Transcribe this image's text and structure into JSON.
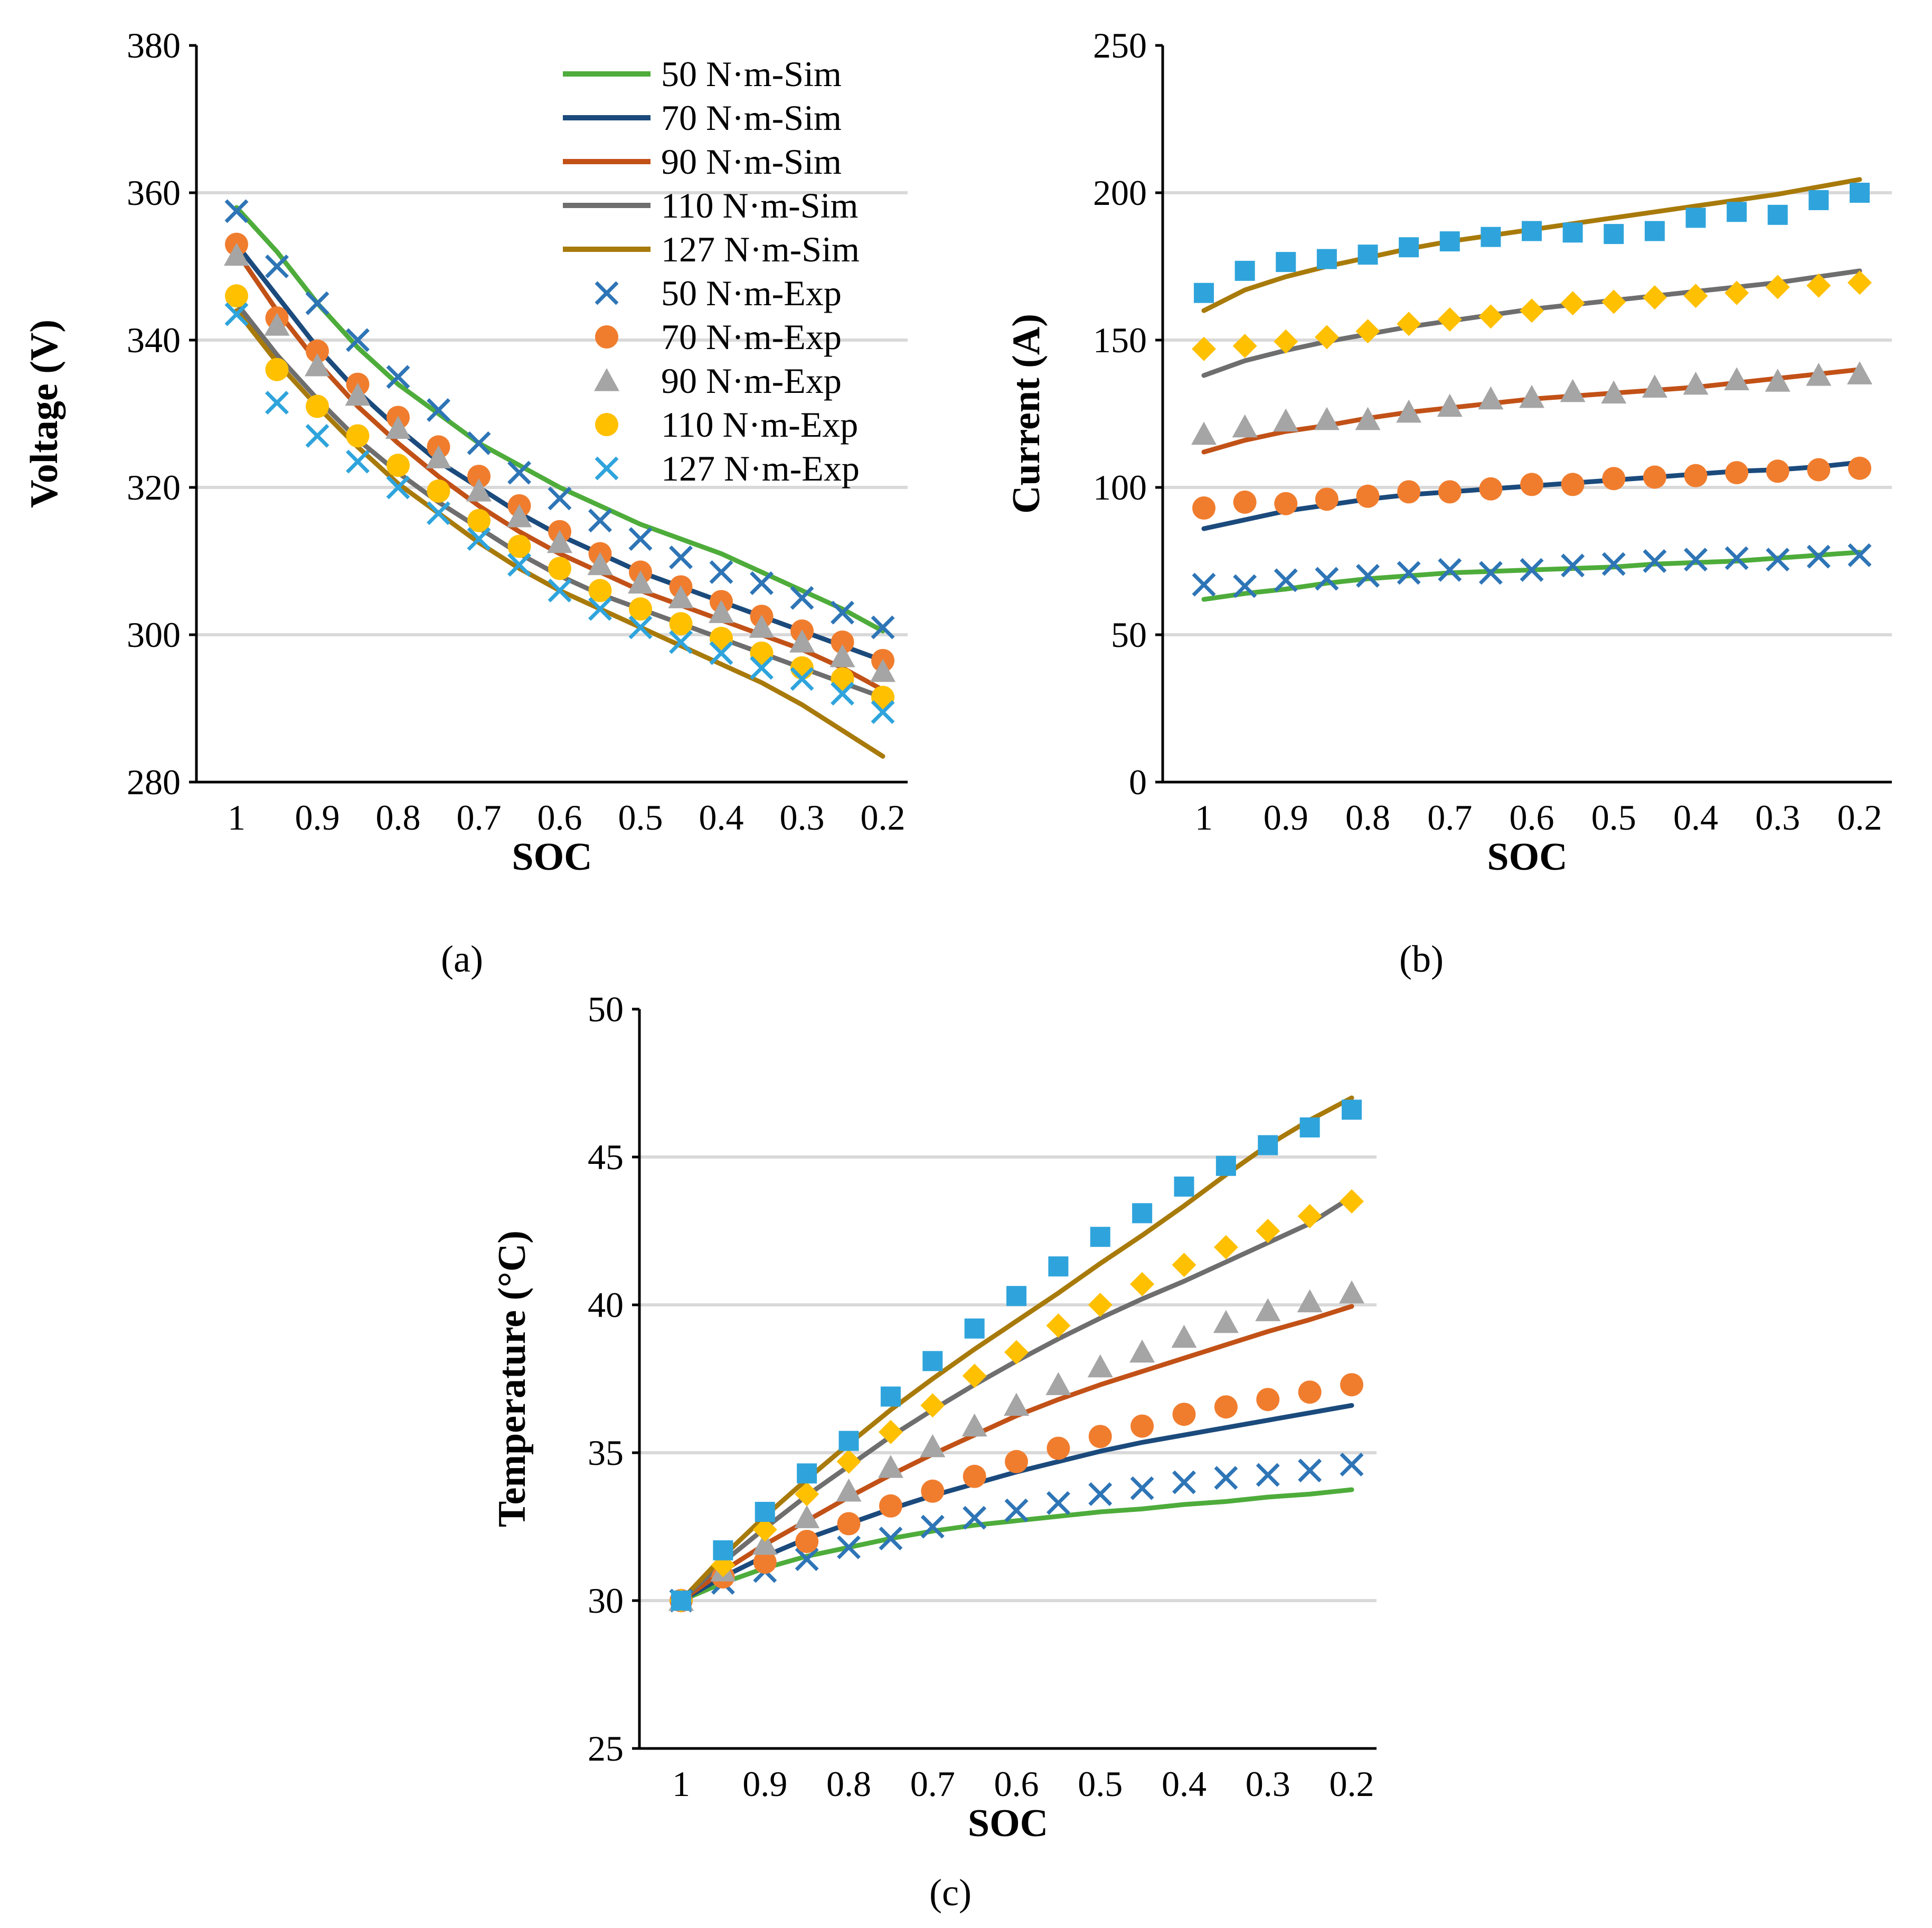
{
  "figure": {
    "panel_labels": [
      "(a)",
      "(b)",
      "(c)"
    ]
  },
  "colors": {
    "sim": {
      "50": "#4EAC3B",
      "70": "#1B4A7C",
      "90": "#C25117",
      "110": "#6E6E6E",
      "127": "#A87A0A"
    },
    "exp": {
      "50": "#2E75B6",
      "70": "#F07D2E",
      "90": "#A5A5A5",
      "110": "#FFC000",
      "127": "#2FA4DC"
    }
  },
  "legend": {
    "entries": [
      {
        "label": "50 N·m-Sim",
        "kind": "line",
        "key": "50"
      },
      {
        "label": "70 N·m-Sim",
        "kind": "line",
        "key": "70"
      },
      {
        "label": "90 N·m-Sim",
        "kind": "line",
        "key": "90"
      },
      {
        "label": "110 N·m-Sim",
        "kind": "line",
        "key": "110"
      },
      {
        "label": "127 N·m-Sim",
        "kind": "line",
        "key": "127"
      },
      {
        "label": "50 N·m-Exp",
        "kind": "x",
        "key": "50"
      },
      {
        "label": "70 N·m-Exp",
        "kind": "circle",
        "key": "70"
      },
      {
        "label": "90 N·m-Exp",
        "kind": "triangle",
        "key": "90"
      },
      {
        "label": "110 N·m-Exp",
        "kind": "circle",
        "key": "110"
      },
      {
        "label": "127 N·m-Exp",
        "kind": "x",
        "key": "127"
      }
    ]
  },
  "chart_data": [
    {
      "id": "a",
      "type": "line",
      "title": "",
      "xlabel": "SOC",
      "ylabel": "Voltage (V)",
      "xlim": [
        1,
        0.2
      ],
      "ylim": [
        280,
        380
      ],
      "yticks": [
        280,
        300,
        320,
        340,
        360,
        380
      ],
      "xticks": [
        1,
        0.9,
        0.8,
        0.7,
        0.6,
        0.5,
        0.4,
        0.3,
        0.2
      ],
      "xtick_labels": [
        "1",
        "0.9",
        "0.8",
        "0.7",
        "0.6",
        "0.5",
        "0.4",
        "0.3",
        "0.2"
      ],
      "gridlines": [
        300,
        320,
        340,
        360
      ],
      "legend": "top-right",
      "sim_x": [
        1,
        0.95,
        0.9,
        0.85,
        0.8,
        0.75,
        0.7,
        0.65,
        0.6,
        0.55,
        0.5,
        0.45,
        0.4,
        0.35,
        0.3,
        0.25,
        0.2
      ],
      "exp_x": [
        1,
        0.95,
        0.9,
        0.85,
        0.8,
        0.75,
        0.7,
        0.65,
        0.6,
        0.55,
        0.5,
        0.45,
        0.4,
        0.35,
        0.3,
        0.25,
        0.2
      ],
      "series": [
        {
          "name": "50 N·m-Sim",
          "key": "50",
          "kind": "line",
          "values": [
            358,
            352,
            345,
            339,
            334,
            330,
            326,
            323,
            320,
            317.5,
            315,
            313,
            311,
            308.5,
            306,
            303.5,
            300.5
          ]
        },
        {
          "name": "70 N·m-Sim",
          "key": "70",
          "kind": "line",
          "values": [
            353,
            346,
            339,
            333,
            328,
            323.5,
            320,
            316.5,
            313.5,
            311,
            308.5,
            306.5,
            304.5,
            302.5,
            300.5,
            298.5,
            296.5
          ]
        },
        {
          "name": "90 N·m-Sim",
          "key": "90",
          "kind": "line",
          "values": [
            352,
            344,
            337,
            331,
            326,
            321.5,
            317.5,
            314,
            311,
            308.5,
            306,
            304,
            302,
            300,
            298,
            295.5,
            292.5
          ]
        },
        {
          "name": "110 N·m-Sim",
          "key": "110",
          "kind": "line",
          "values": [
            345,
            338,
            332,
            326.5,
            322,
            318,
            314.5,
            311,
            308,
            305.5,
            303.5,
            301.5,
            299.5,
            297.5,
            295.5,
            293.5,
            291.5
          ]
        },
        {
          "name": "127 N·m-Sim",
          "key": "127",
          "kind": "line",
          "values": [
            344,
            337,
            331,
            325.5,
            320.5,
            316.5,
            312.5,
            309,
            306,
            303.5,
            301,
            298.5,
            296,
            293.5,
            290.5,
            287,
            283.5
          ]
        },
        {
          "name": "50 N·m-Exp",
          "key": "50",
          "kind": "x",
          "values": [
            357.5,
            350,
            345,
            340,
            335,
            330.5,
            326,
            322,
            318.5,
            315.5,
            313,
            310.5,
            308.5,
            307,
            305,
            303,
            301
          ]
        },
        {
          "name": "70 N·m-Exp",
          "key": "70",
          "kind": "circle",
          "values": [
            353,
            343,
            338.5,
            334,
            329.5,
            325.5,
            321.5,
            317.5,
            314,
            311,
            308.5,
            306.5,
            304.5,
            302.5,
            300.5,
            299,
            296.5
          ]
        },
        {
          "name": "90 N·m-Exp",
          "key": "90",
          "kind": "triangle",
          "values": [
            351.5,
            342,
            336.5,
            332.5,
            328,
            324,
            319.5,
            316,
            312.5,
            309.5,
            307,
            305,
            303,
            301,
            299,
            297,
            295
          ]
        },
        {
          "name": "110 N·m-Exp",
          "key": "110",
          "kind": "circle",
          "values": [
            346,
            336,
            331,
            327,
            323,
            319.5,
            315.5,
            312,
            309,
            306,
            303.5,
            301.5,
            299.5,
            297.5,
            295.5,
            294,
            291.5
          ]
        },
        {
          "name": "127 N·m-Exp",
          "key": "127",
          "kind": "x",
          "values": [
            343.5,
            331.5,
            327,
            323.5,
            320,
            316.5,
            313,
            309.5,
            306,
            303.5,
            301,
            299,
            297.5,
            295.5,
            294,
            292,
            289.5
          ]
        }
      ]
    },
    {
      "id": "b",
      "type": "line",
      "title": "",
      "xlabel": "SOC",
      "ylabel": "Current (A)",
      "xlim": [
        1,
        0.2
      ],
      "ylim": [
        0,
        250
      ],
      "yticks": [
        0,
        50,
        100,
        150,
        200,
        250
      ],
      "xticks": [
        1,
        0.9,
        0.8,
        0.7,
        0.6,
        0.5,
        0.4,
        0.3,
        0.2
      ],
      "xtick_labels": [
        "1",
        "0.9",
        "0.8",
        "0.7",
        "0.6",
        "0.5",
        "0.4",
        "0.3",
        "0.2"
      ],
      "gridlines": [
        50,
        100,
        150,
        200
      ],
      "legend": "none",
      "sim_x": [
        1,
        0.95,
        0.9,
        0.85,
        0.8,
        0.75,
        0.7,
        0.65,
        0.6,
        0.55,
        0.5,
        0.45,
        0.4,
        0.35,
        0.3,
        0.25,
        0.2
      ],
      "exp_x": [
        1,
        0.95,
        0.9,
        0.85,
        0.8,
        0.75,
        0.7,
        0.65,
        0.6,
        0.55,
        0.5,
        0.45,
        0.4,
        0.35,
        0.3,
        0.25,
        0.2
      ],
      "series": [
        {
          "name": "50 N·m-Sim",
          "key": "50",
          "kind": "line",
          "values": [
            62,
            64,
            65.5,
            67.5,
            69,
            70,
            71,
            71.5,
            72,
            72.5,
            73,
            74,
            74.5,
            75,
            76,
            77,
            78
          ]
        },
        {
          "name": "70 N·m-Sim",
          "key": "70",
          "kind": "line",
          "values": [
            86,
            89,
            92,
            94,
            96,
            97.5,
            98.5,
            99.5,
            100.5,
            101.5,
            102.5,
            103.5,
            104.5,
            105.5,
            106,
            107,
            108.5
          ]
        },
        {
          "name": "90 N·m-Sim",
          "key": "90",
          "kind": "line",
          "values": [
            112,
            116,
            119,
            121,
            123.5,
            125.5,
            127,
            128.5,
            130,
            131,
            132,
            133,
            134,
            135.5,
            137,
            138.5,
            140
          ]
        },
        {
          "name": "110 N·m-Sim",
          "key": "110",
          "kind": "line",
          "values": [
            138,
            143,
            146.5,
            149.5,
            152,
            154.5,
            156.5,
            158.5,
            160.5,
            162,
            163.5,
            165,
            166.5,
            168,
            169.5,
            171.5,
            173.5
          ]
        },
        {
          "name": "127 N·m-Sim",
          "key": "127",
          "kind": "line",
          "values": [
            160,
            167,
            171.5,
            175,
            178,
            181,
            183.5,
            185.5,
            187.5,
            189.5,
            191.5,
            193.5,
            195.5,
            197.5,
            199.5,
            202,
            204.5
          ]
        },
        {
          "name": "50 N·m-Exp",
          "key": "50",
          "kind": "x",
          "values": [
            67,
            66.5,
            68.5,
            69,
            70,
            71,
            72,
            71,
            72,
            73.5,
            74,
            75,
            75.5,
            76,
            75.5,
            76.5,
            77
          ]
        },
        {
          "name": "70 N·m-Exp",
          "key": "70",
          "kind": "circle",
          "values": [
            93,
            95,
            94.5,
            96,
            97,
            98.5,
            98.5,
            99.5,
            101,
            101,
            103,
            103.5,
            104,
            105,
            105.5,
            106,
            106.5
          ]
        },
        {
          "name": "90 N·m-Exp",
          "key": "90",
          "kind": "triangle",
          "values": [
            118,
            120.5,
            122.5,
            123,
            123,
            125.5,
            127.5,
            130,
            130.5,
            132.5,
            132,
            134,
            135,
            136.5,
            136,
            138,
            138.5
          ]
        },
        {
          "name": "110 N·m-Exp",
          "key": "110",
          "kind": "diamond",
          "values": [
            147,
            148,
            149.5,
            151,
            153,
            155.5,
            157,
            158,
            160,
            162.5,
            163,
            164.5,
            165,
            166,
            168,
            168.5,
            169.5
          ]
        },
        {
          "name": "127 N·m-Exp",
          "key": "127",
          "kind": "square",
          "values": [
            166,
            173.5,
            176.5,
            177.5,
            179,
            181.5,
            183.5,
            185,
            187,
            186.5,
            186,
            187,
            191.5,
            193.5,
            192.5,
            197.5,
            200
          ]
        }
      ]
    },
    {
      "id": "c",
      "type": "line",
      "title": "",
      "xlabel": "SOC",
      "ylabel": "Temperature (°C)",
      "xlim": [
        1,
        0.2
      ],
      "ylim": [
        25,
        50
      ],
      "yticks": [
        25,
        30,
        35,
        40,
        45,
        50
      ],
      "xticks": [
        1,
        0.9,
        0.8,
        0.7,
        0.6,
        0.5,
        0.4,
        0.3,
        0.2
      ],
      "xtick_labels": [
        "1",
        "0.9",
        "0.8",
        "0.7",
        "0.6",
        "0.5",
        "0.4",
        "0.3",
        "0.2"
      ],
      "gridlines": [
        30,
        35,
        40,
        45
      ],
      "legend": "none",
      "sim_x": [
        1,
        0.95,
        0.9,
        0.85,
        0.8,
        0.75,
        0.7,
        0.65,
        0.6,
        0.55,
        0.5,
        0.45,
        0.4,
        0.35,
        0.3,
        0.25,
        0.2
      ],
      "exp_x": [
        1,
        0.95,
        0.9,
        0.85,
        0.8,
        0.75,
        0.7,
        0.65,
        0.6,
        0.55,
        0.5,
        0.45,
        0.4,
        0.35,
        0.3,
        0.25,
        0.2
      ],
      "series": [
        {
          "name": "50 N·m-Sim",
          "key": "50",
          "kind": "line",
          "values": [
            30,
            30.6,
            31.1,
            31.5,
            31.8,
            32.1,
            32.35,
            32.55,
            32.7,
            32.85,
            33,
            33.1,
            33.25,
            33.35,
            33.5,
            33.6,
            33.75
          ]
        },
        {
          "name": "70 N·m-Sim",
          "key": "70",
          "kind": "line",
          "values": [
            30,
            30.8,
            31.5,
            32.1,
            32.6,
            33.1,
            33.55,
            33.95,
            34.35,
            34.7,
            35.05,
            35.35,
            35.6,
            35.85,
            36.1,
            36.35,
            36.6
          ]
        },
        {
          "name": "90 N·m-Sim",
          "key": "90",
          "kind": "line",
          "values": [
            30,
            31,
            31.9,
            32.7,
            33.5,
            34.25,
            34.95,
            35.6,
            36.25,
            36.8,
            37.3,
            37.75,
            38.2,
            38.65,
            39.1,
            39.5,
            39.95
          ]
        },
        {
          "name": "110 N·m-Sim",
          "key": "110",
          "kind": "line",
          "values": [
            30,
            31.3,
            32.45,
            33.55,
            34.55,
            35.55,
            36.45,
            37.3,
            38.1,
            38.85,
            39.55,
            40.2,
            40.8,
            41.45,
            42.1,
            42.75,
            43.65
          ]
        },
        {
          "name": "127 N·m-Sim",
          "key": "127",
          "kind": "line",
          "values": [
            30,
            31.5,
            32.85,
            34.1,
            35.3,
            36.45,
            37.5,
            38.5,
            39.45,
            40.4,
            41.4,
            42.35,
            43.35,
            44.4,
            45.4,
            46.25,
            47
          ]
        },
        {
          "name": "50 N·m-Exp",
          "key": "50",
          "kind": "x",
          "values": [
            30,
            30.6,
            31,
            31.4,
            31.8,
            32.1,
            32.5,
            32.8,
            33.05,
            33.3,
            33.6,
            33.8,
            34,
            34.15,
            34.25,
            34.4,
            34.6
          ]
        },
        {
          "name": "70 N·m-Exp",
          "key": "70",
          "kind": "circle",
          "values": [
            30,
            30.8,
            31.3,
            32,
            32.6,
            33.2,
            33.7,
            34.2,
            34.7,
            35.15,
            35.55,
            35.9,
            36.3,
            36.55,
            36.8,
            37.05,
            37.3
          ]
        },
        {
          "name": "90 N·m-Exp",
          "key": "90",
          "kind": "triangle",
          "values": [
            30,
            31,
            31.9,
            32.8,
            33.7,
            34.5,
            35.2,
            35.9,
            36.6,
            37.3,
            37.9,
            38.4,
            38.9,
            39.4,
            39.8,
            40.1,
            40.4
          ]
        },
        {
          "name": "110 N·m-Exp",
          "key": "110",
          "kind": "diamond",
          "values": [
            30,
            31.2,
            32.4,
            33.6,
            34.7,
            35.7,
            36.6,
            37.6,
            38.4,
            39.3,
            40,
            40.7,
            41.35,
            41.95,
            42.5,
            43,
            43.5
          ]
        },
        {
          "name": "127 N·m-Exp",
          "key": "127",
          "kind": "square",
          "values": [
            30,
            31.7,
            33,
            34.3,
            35.4,
            36.9,
            38.1,
            39.2,
            40.3,
            41.3,
            42.3,
            43.1,
            44,
            44.7,
            45.4,
            46,
            46.6
          ]
        }
      ]
    }
  ]
}
